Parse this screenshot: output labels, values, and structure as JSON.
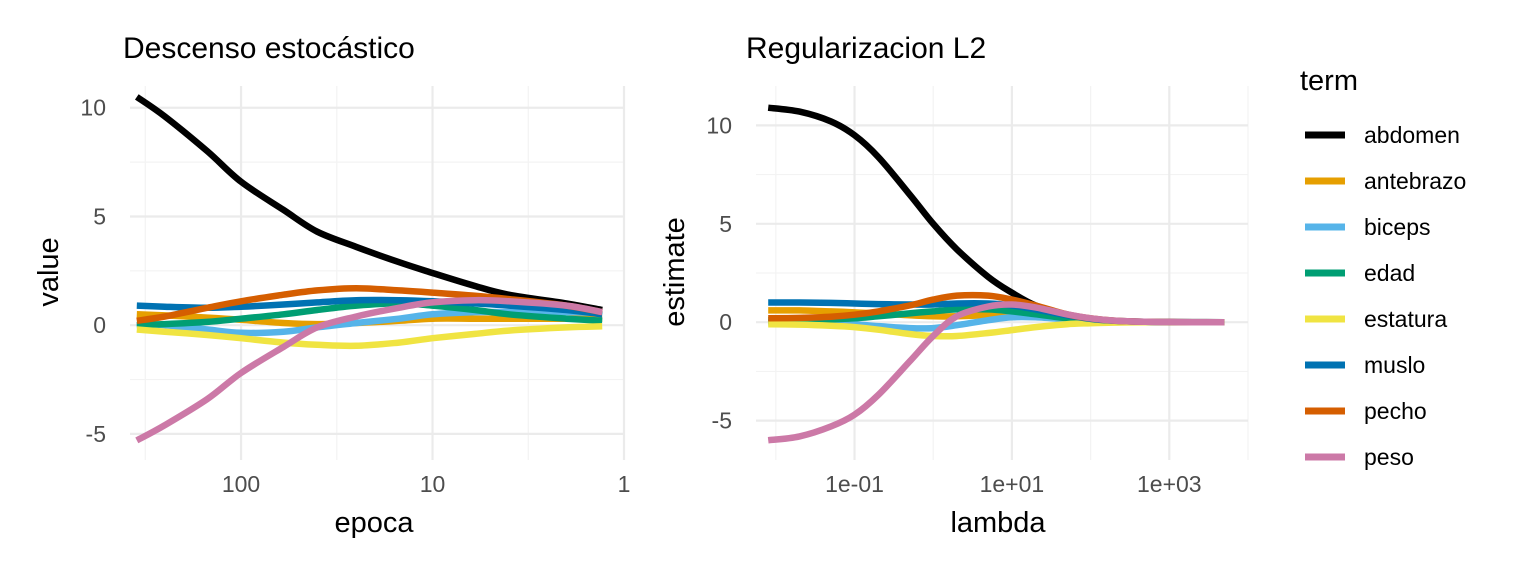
{
  "chart_data": [
    {
      "type": "line",
      "title": "Descenso estocástico",
      "xlabel": "epoca",
      "ylabel": "value",
      "x_scale": "log10, reversed",
      "x_ticks": [
        100,
        10,
        1
      ],
      "x_tick_labels": [
        "100",
        "10",
        "1"
      ],
      "xlim": [
        380,
        1
      ],
      "y_ticks": [
        -5,
        0,
        5,
        10
      ],
      "y_tick_labels": [
        "-5",
        "0",
        "5",
        "10"
      ],
      "ylim": [
        -6.2,
        11
      ],
      "grid": true,
      "x": [
        350,
        250,
        150,
        100,
        60,
        40,
        25,
        15,
        10,
        6,
        4,
        2,
        1.3
      ],
      "series": [
        {
          "name": "abdomen",
          "color": "#000000",
          "values": [
            10.5,
            9.6,
            8.0,
            6.6,
            5.3,
            4.3,
            3.6,
            2.9,
            2.4,
            1.8,
            1.4,
            1.0,
            0.7
          ]
        },
        {
          "name": "antebrazo",
          "color": "#E69F00",
          "values": [
            0.5,
            0.45,
            0.35,
            0.25,
            0.1,
            0.05,
            0.1,
            0.2,
            0.3,
            0.3,
            0.3,
            0.3,
            0.3
          ]
        },
        {
          "name": "biceps",
          "color": "#56B4E9",
          "values": [
            0.1,
            0.0,
            -0.2,
            -0.35,
            -0.3,
            -0.1,
            0.1,
            0.3,
            0.5,
            0.6,
            0.6,
            0.6,
            0.55
          ]
        },
        {
          "name": "edad",
          "color": "#009E73",
          "values": [
            0.0,
            0.05,
            0.15,
            0.3,
            0.5,
            0.7,
            0.9,
            1.0,
            0.9,
            0.7,
            0.5,
            0.3,
            0.2
          ]
        },
        {
          "name": "estatura",
          "color": "#F0E442",
          "values": [
            -0.2,
            -0.3,
            -0.45,
            -0.6,
            -0.8,
            -0.9,
            -0.95,
            -0.8,
            -0.6,
            -0.4,
            -0.25,
            -0.1,
            -0.05
          ]
        },
        {
          "name": "muslo",
          "color": "#0072B2",
          "values": [
            0.9,
            0.85,
            0.8,
            0.85,
            0.95,
            1.05,
            1.15,
            1.15,
            1.1,
            1.0,
            0.9,
            0.7,
            0.5
          ]
        },
        {
          "name": "pecho",
          "color": "#D55E00",
          "values": [
            0.2,
            0.4,
            0.8,
            1.1,
            1.4,
            1.6,
            1.7,
            1.6,
            1.5,
            1.35,
            1.2,
            0.9,
            0.6
          ]
        },
        {
          "name": "peso",
          "color": "#CC79A7",
          "values": [
            -5.3,
            -4.6,
            -3.4,
            -2.2,
            -1.0,
            -0.1,
            0.4,
            0.8,
            1.05,
            1.15,
            1.1,
            0.9,
            0.6
          ]
        }
      ]
    },
    {
      "type": "line",
      "title": "Regularizacion L2",
      "xlabel": "lambda",
      "ylabel": "estimate",
      "x_scale": "log10",
      "x_ticks": [
        0.1,
        10,
        1000
      ],
      "x_tick_labels": [
        "1e-01",
        "1e+01",
        "1e+03"
      ],
      "xlim": [
        0.0056,
        10000
      ],
      "y_ticks": [
        -5,
        0,
        5,
        10
      ],
      "y_tick_labels": [
        "-5",
        "0",
        "5",
        "10"
      ],
      "ylim": [
        -7,
        12
      ],
      "grid": true,
      "x": [
        0.008,
        0.02,
        0.05,
        0.1,
        0.2,
        0.5,
        1,
        2,
        5,
        10,
        20,
        50,
        100,
        200,
        500,
        1000,
        2000,
        5000
      ],
      "series": [
        {
          "name": "abdomen",
          "color": "#000000",
          "values": [
            10.9,
            10.7,
            10.2,
            9.5,
            8.4,
            6.5,
            5.0,
            3.7,
            2.3,
            1.5,
            0.85,
            0.35,
            0.15,
            0.06,
            0.02,
            0.01,
            0.005,
            0.0
          ]
        },
        {
          "name": "antebrazo",
          "color": "#E69F00",
          "values": [
            0.6,
            0.6,
            0.55,
            0.5,
            0.45,
            0.35,
            0.3,
            0.3,
            0.35,
            0.35,
            0.3,
            0.15,
            0.08,
            0.03,
            0.01,
            0.0,
            0.0,
            0.0
          ]
        },
        {
          "name": "biceps",
          "color": "#56B4E9",
          "values": [
            0.0,
            0.0,
            -0.05,
            -0.1,
            -0.2,
            -0.3,
            -0.3,
            -0.15,
            0.1,
            0.25,
            0.25,
            0.15,
            0.07,
            0.03,
            0.01,
            0.0,
            0.0,
            0.0
          ]
        },
        {
          "name": "edad",
          "color": "#009E73",
          "values": [
            0.1,
            0.1,
            0.15,
            0.2,
            0.3,
            0.45,
            0.55,
            0.65,
            0.65,
            0.55,
            0.4,
            0.2,
            0.1,
            0.04,
            0.01,
            0.0,
            0.0,
            0.0
          ]
        },
        {
          "name": "estatura",
          "color": "#F0E442",
          "values": [
            -0.1,
            -0.12,
            -0.18,
            -0.25,
            -0.38,
            -0.6,
            -0.7,
            -0.7,
            -0.55,
            -0.4,
            -0.25,
            -0.1,
            -0.05,
            -0.02,
            0.0,
            0.0,
            0.0,
            0.0
          ]
        },
        {
          "name": "muslo",
          "color": "#0072B2",
          "values": [
            1.0,
            1.0,
            0.98,
            0.95,
            0.92,
            0.9,
            0.9,
            0.95,
            0.95,
            0.85,
            0.65,
            0.35,
            0.17,
            0.07,
            0.02,
            0.01,
            0.0,
            0.0
          ]
        },
        {
          "name": "pecho",
          "color": "#D55E00",
          "values": [
            0.2,
            0.22,
            0.28,
            0.38,
            0.55,
            0.85,
            1.15,
            1.35,
            1.35,
            1.15,
            0.85,
            0.4,
            0.2,
            0.08,
            0.02,
            0.01,
            0.0,
            0.0
          ]
        },
        {
          "name": "peso",
          "color": "#CC79A7",
          "values": [
            -6.0,
            -5.8,
            -5.3,
            -4.7,
            -3.7,
            -2.0,
            -0.7,
            0.3,
            0.8,
            0.9,
            0.75,
            0.4,
            0.2,
            0.08,
            0.02,
            0.01,
            0.0,
            0.0
          ]
        }
      ]
    }
  ],
  "legend": {
    "title": "term",
    "items": [
      {
        "label": "abdomen",
        "color": "#000000"
      },
      {
        "label": "antebrazo",
        "color": "#E69F00"
      },
      {
        "label": "biceps",
        "color": "#56B4E9"
      },
      {
        "label": "edad",
        "color": "#009E73"
      },
      {
        "label": "estatura",
        "color": "#F0E442"
      },
      {
        "label": "muslo",
        "color": "#0072B2"
      },
      {
        "label": "pecho",
        "color": "#D55E00"
      },
      {
        "label": "peso",
        "color": "#CC79A7"
      }
    ]
  }
}
